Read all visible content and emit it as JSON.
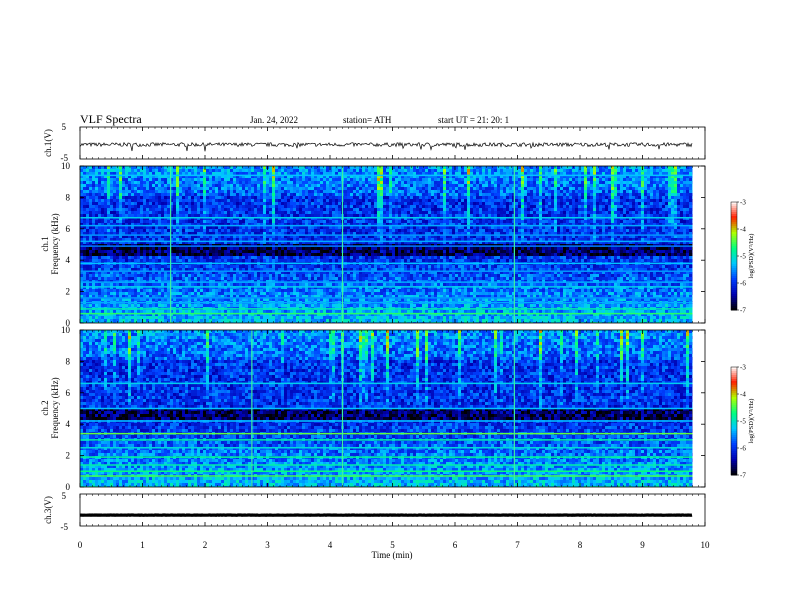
{
  "header": {
    "title": "VLF  Spectra",
    "date": "Jan. 24, 2022",
    "station": "station= ATH",
    "start_ut": "start  UT  =   21: 20: 1"
  },
  "chart_data": [
    {
      "type": "line",
      "panel": "ch1-waveform",
      "ylabel": "ch.1(V)",
      "ylim": [
        -5,
        5
      ],
      "yticks": [
        -5,
        5
      ],
      "x_range_min": [
        0,
        9.8
      ],
      "mean": -0.5,
      "noise_amplitude": 0.6,
      "grid": false
    },
    {
      "type": "heatmap",
      "panel": "ch1-spectrogram",
      "ylabel": "ch.1\nFrequency (kHz)",
      "ylim": [
        0,
        10
      ],
      "yticks": [
        0,
        2,
        4,
        6,
        8,
        10
      ],
      "colorbar": {
        "label": "log(PSD)(V²/Hz)",
        "ticks": [
          -3,
          -4,
          -5,
          -6,
          -7
        ],
        "range": [
          -7,
          -3
        ],
        "stops": [
          "#000000",
          "#0000b0",
          "#0040ff",
          "#00c8ff",
          "#00ff80",
          "#b0ff00",
          "#ff2000",
          "#ffffff"
        ]
      },
      "bands_khz": [
        {
          "f": 9.4,
          "level": -5.3
        },
        {
          "f": 6.7,
          "level": -5.2
        },
        {
          "f": 6.2,
          "level": -5.4
        },
        {
          "f": 5.6,
          "level": -5.5
        },
        {
          "f": 5.2,
          "level": -5.4
        },
        {
          "f": 4.9,
          "level": -5.6
        },
        {
          "f": 3.8,
          "level": -5.3
        },
        {
          "f": 3.3,
          "level": -5.5
        },
        {
          "f": 2.6,
          "level": -5.4
        },
        {
          "f": 2.3,
          "level": -5.2
        },
        {
          "f": 1.6,
          "level": -5.5
        },
        {
          "f": 1.3,
          "level": -5.4
        },
        {
          "f": 0.9,
          "level": -4.9
        },
        {
          "f": 0.6,
          "level": -4.6
        }
      ],
      "spikes_at_min": [
        4.2,
        1.45,
        6.95
      ]
    },
    {
      "type": "heatmap",
      "panel": "ch2-spectrogram",
      "ylabel": "ch.2\nFrequency (kHz)",
      "ylim": [
        0,
        10
      ],
      "yticks": [
        0,
        2,
        4,
        6,
        8,
        10
      ],
      "colorbar": {
        "label": "log(PSD)(V²/Hz)",
        "ticks": [
          -3,
          -4,
          -5,
          -6,
          -7
        ],
        "range": [
          -7,
          -3
        ],
        "stops": [
          "#000000",
          "#0000b0",
          "#0040ff",
          "#00c8ff",
          "#00ff80",
          "#b0ff00",
          "#ff2000",
          "#ffffff"
        ]
      },
      "bands_khz": [
        {
          "f": 6.6,
          "level": -5.2
        },
        {
          "f": 5.0,
          "level": -5.3
        },
        {
          "f": 4.2,
          "level": -5.3
        },
        {
          "f": 3.4,
          "level": -4.4
        },
        {
          "f": 3.0,
          "level": -4.9
        },
        {
          "f": 2.5,
          "level": -5.1
        },
        {
          "f": 1.9,
          "level": -4.8
        },
        {
          "f": 1.4,
          "level": -4.9
        },
        {
          "f": 1.0,
          "level": -4.7
        },
        {
          "f": 0.7,
          "level": -4.5
        }
      ],
      "spikes_at_min": [
        4.2,
        2.75,
        6.95
      ]
    },
    {
      "type": "line",
      "panel": "ch3-waveform",
      "ylabel": "ch.3(V)",
      "ylim": [
        -5,
        5
      ],
      "yticks": [
        -5,
        5
      ],
      "x_range_min": [
        0,
        9.8
      ],
      "mean": -1.6,
      "noise_amplitude": 0.05,
      "grid": false
    }
  ],
  "x_axis": {
    "xlabel": "Time  (min)",
    "xlim": [
      0,
      10
    ],
    "ticks": [
      0,
      1,
      2,
      3,
      4,
      5,
      6,
      7,
      8,
      9,
      10
    ]
  }
}
